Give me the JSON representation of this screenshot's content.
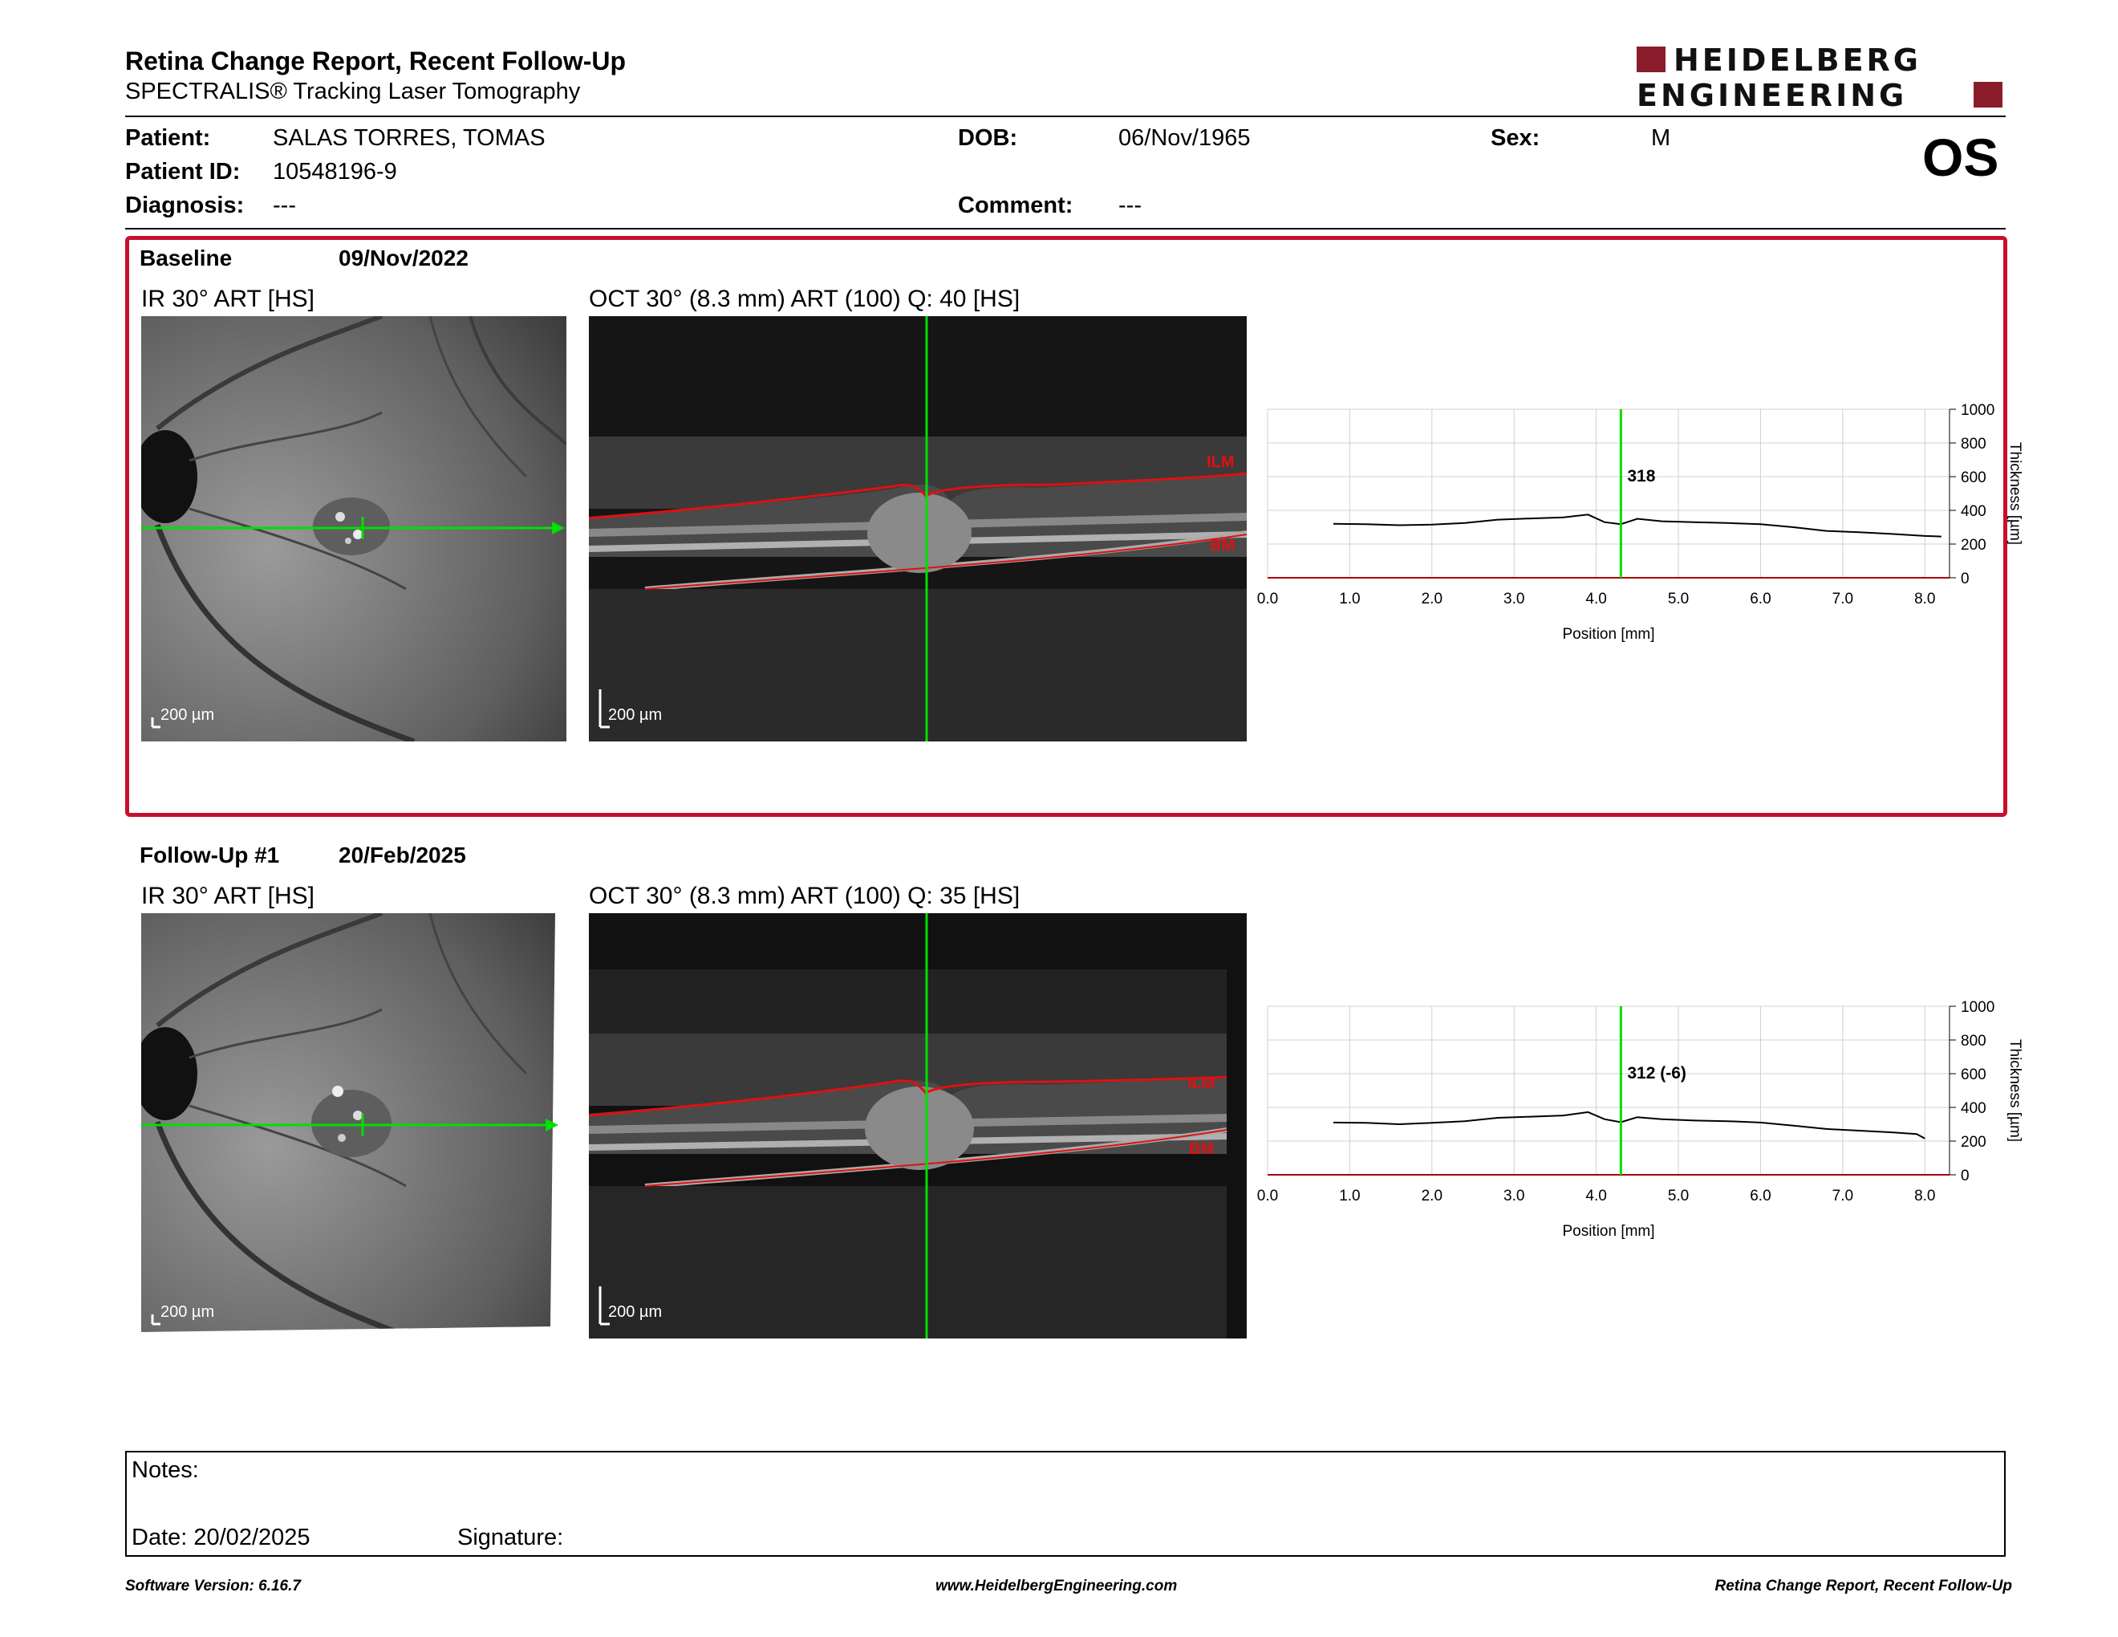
{
  "header": {
    "title": "Retina Change Report, Recent Follow-Up",
    "subtitle": "SPECTRALIS® Tracking Laser Tomography",
    "logo_line1": "HEIDELBERG",
    "logo_line2": "ENGINEERING",
    "eye": "OS"
  },
  "patient": {
    "patient_label": "Patient:",
    "patient_name": "SALAS TORRES, TOMAS",
    "id_label": "Patient ID:",
    "id_value": "10548196-9",
    "diagnosis_label": "Diagnosis:",
    "diagnosis_value": "---",
    "dob_label": "DOB:",
    "dob_value": "06/Nov/1965",
    "comment_label": "Comment:",
    "comment_value": "---",
    "sex_label": "Sex:",
    "sex_value": "M"
  },
  "baseline": {
    "label": "Baseline",
    "date": "09/Nov/2022",
    "ir_label": "IR 30° ART [HS]",
    "oct_label": "OCT 30° (8.3 mm) ART (100) Q: 40 [HS]",
    "scale_text": "200 µm",
    "ilm": "ILM",
    "bm": "BM"
  },
  "followup": {
    "label": "Follow-Up #1",
    "date": "20/Feb/2025",
    "ir_label": "IR 30° ART [HS]",
    "oct_label": "OCT 30° (8.3 mm) ART (100) Q: 35 [HS]",
    "scale_text": "200 µm",
    "ilm": "ILM",
    "bm": "BM"
  },
  "chart_data": [
    {
      "type": "line",
      "xlabel": "Position [mm]",
      "ylabel": "Thickness [µm]",
      "xlim": [
        0,
        8.3
      ],
      "ylim": [
        0,
        1000
      ],
      "xticks": [
        "0.0",
        "1.0",
        "2.0",
        "3.0",
        "4.0",
        "5.0",
        "6.0",
        "7.0",
        "8.0"
      ],
      "yticks": [
        "0",
        "200",
        "400",
        "600",
        "800",
        "1000"
      ],
      "marker_x": 4.3,
      "marker_label": "318",
      "grid": true,
      "x": [
        0.8,
        1.2,
        1.6,
        2.0,
        2.4,
        2.8,
        3.2,
        3.6,
        3.9,
        4.1,
        4.3,
        4.5,
        4.8,
        5.2,
        5.6,
        6.0,
        6.4,
        6.8,
        7.2,
        7.6,
        8.0,
        8.2
      ],
      "y": [
        320,
        318,
        312,
        315,
        325,
        345,
        352,
        358,
        375,
        330,
        318,
        350,
        335,
        330,
        325,
        318,
        300,
        278,
        270,
        260,
        248,
        245
      ]
    },
    {
      "type": "line",
      "xlabel": "Position [mm]",
      "ylabel": "Thickness [µm]",
      "xlim": [
        0,
        8.3
      ],
      "ylim": [
        0,
        1000
      ],
      "xticks": [
        "0.0",
        "1.0",
        "2.0",
        "3.0",
        "4.0",
        "5.0",
        "6.0",
        "7.0",
        "8.0"
      ],
      "yticks": [
        "0",
        "200",
        "400",
        "600",
        "800",
        "1000"
      ],
      "marker_x": 4.3,
      "marker_label": "312 (-6)",
      "grid": true,
      "x": [
        0.8,
        1.2,
        1.6,
        2.0,
        2.4,
        2.8,
        3.2,
        3.6,
        3.9,
        4.1,
        4.3,
        4.5,
        4.8,
        5.2,
        5.6,
        6.0,
        6.4,
        6.8,
        7.2,
        7.6,
        7.9,
        8.0
      ],
      "y": [
        310,
        308,
        300,
        308,
        318,
        338,
        345,
        352,
        372,
        330,
        312,
        342,
        330,
        322,
        318,
        310,
        292,
        272,
        262,
        252,
        242,
        215
      ]
    }
  ],
  "notes": {
    "notes_label": "Notes:",
    "date_label": "Date: 20/02/2025",
    "signature_label": "Signature:"
  },
  "footer": {
    "left": "Software Version: 6.16.7",
    "center": "www.HeidelbergEngineering.com",
    "right": "Retina Change Report, Recent Follow-Up"
  },
  "colors": {
    "accent": "#c8102e",
    "marker": "#00dd00",
    "logo": "#8b1c2c"
  }
}
